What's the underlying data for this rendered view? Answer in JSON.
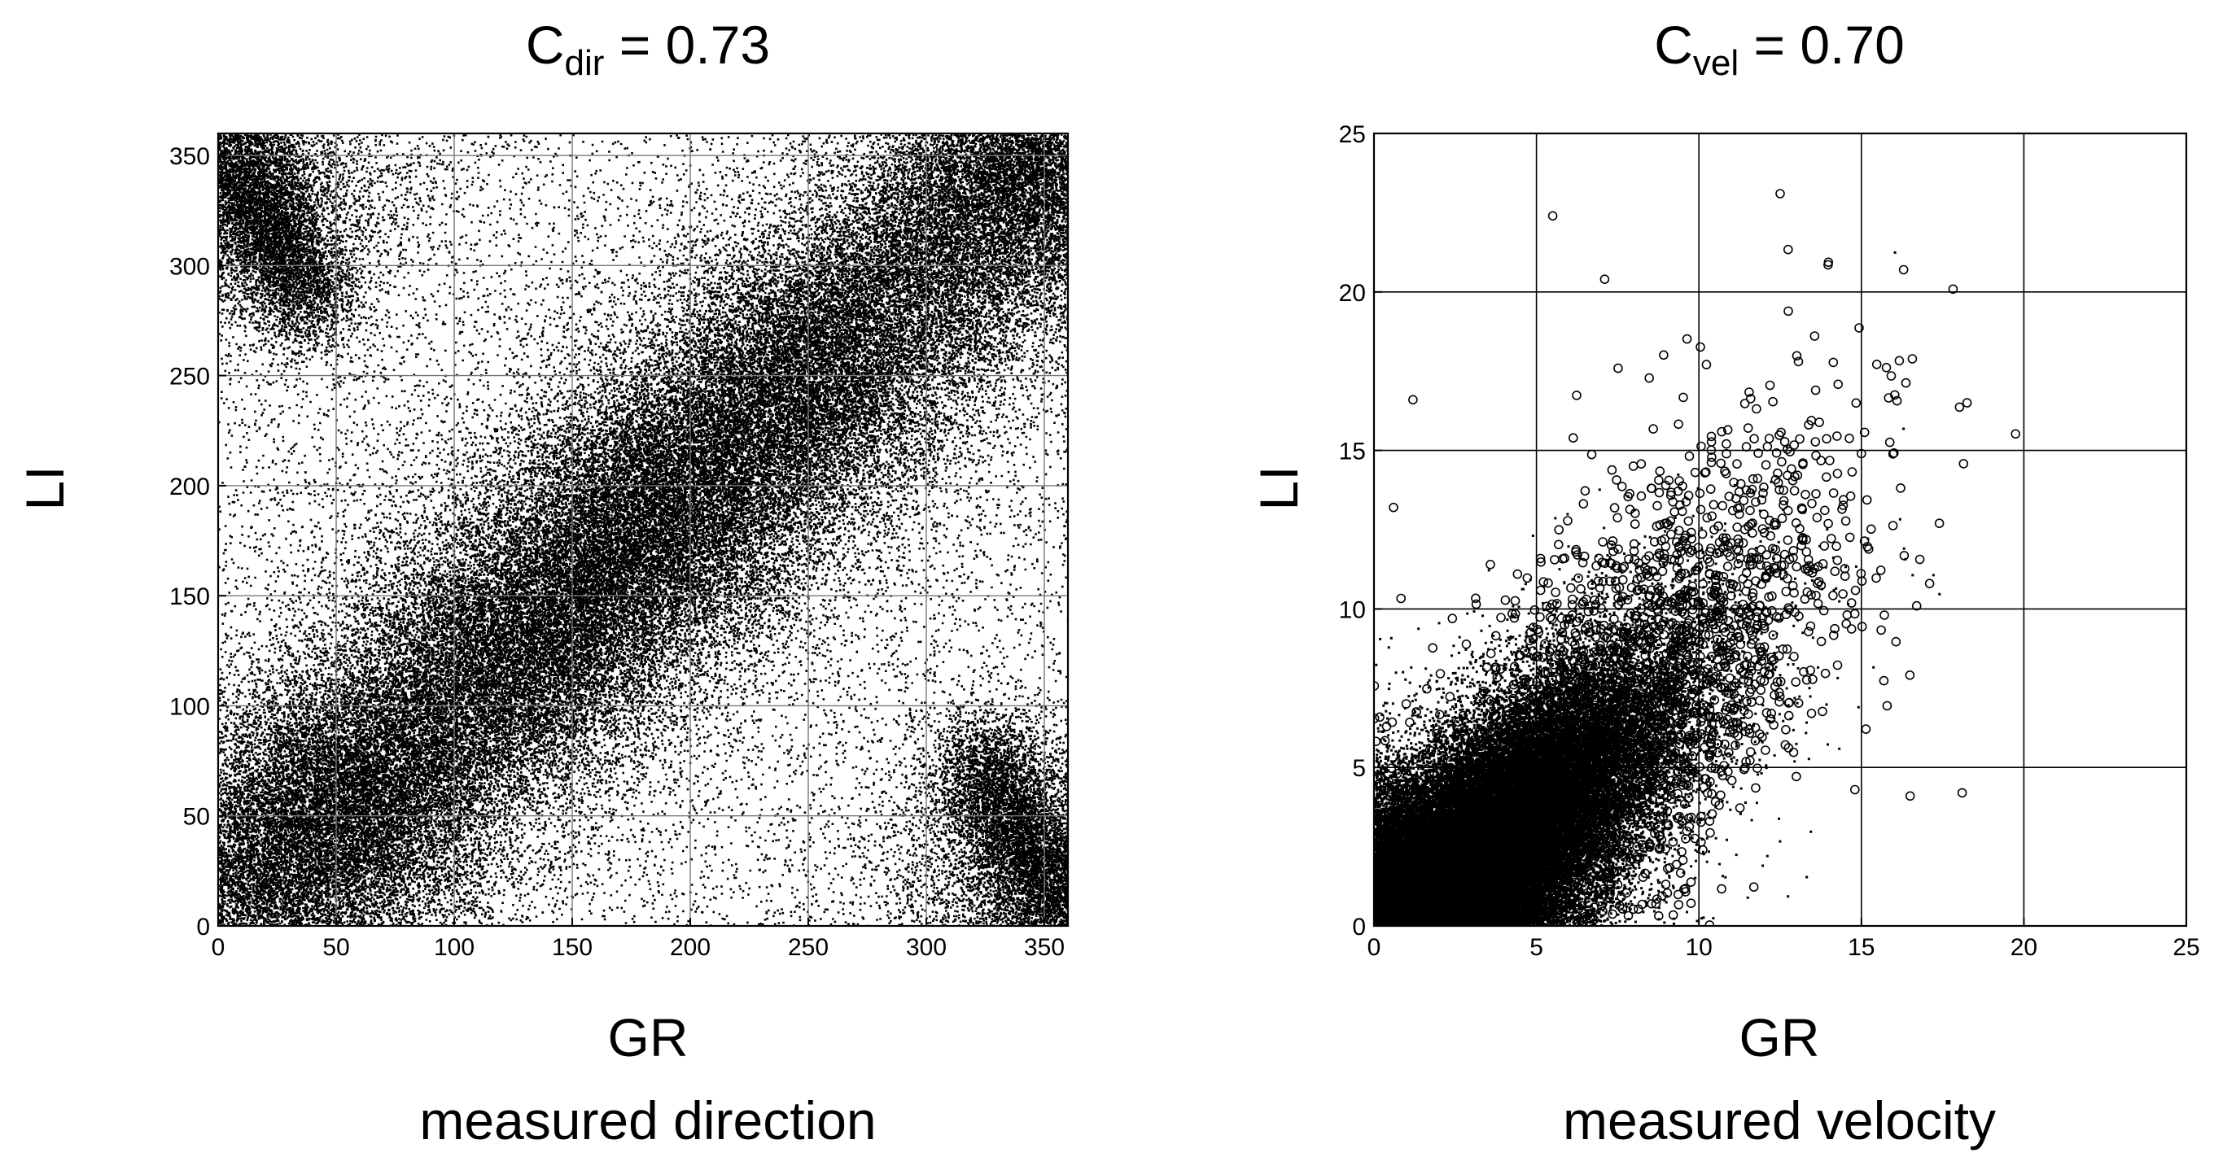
{
  "chart_data": [
    {
      "type": "scatter",
      "title": {
        "base": "C",
        "subscript": "dir",
        "rest": " = 0.73"
      },
      "xlabel": "GR",
      "ylabel": "LI",
      "caption": "measured direction",
      "xlim": [
        0,
        360
      ],
      "ylim": [
        0,
        360
      ],
      "xticks": [
        0,
        50,
        100,
        150,
        200,
        250,
        300,
        350
      ],
      "yticks": [
        0,
        50,
        100,
        150,
        200,
        250,
        300,
        350
      ],
      "grid": true,
      "marker": "dot",
      "description_of_density": [
        {
          "x": 50,
          "y": 50,
          "weight": 1.0
        },
        {
          "x": 125,
          "y": 125,
          "weight": 0.8
        },
        {
          "x": 185,
          "y": 185,
          "weight": 0.9
        },
        {
          "x": 250,
          "y": 250,
          "weight": 0.75
        },
        {
          "x": 340,
          "y": 340,
          "weight": 0.8
        },
        {
          "x": 350,
          "y": 20,
          "weight": 0.6
        },
        {
          "x": 15,
          "y": 345,
          "weight": 0.55
        }
      ]
    },
    {
      "type": "scatter",
      "title": {
        "base": "C",
        "subscript": "vel",
        "rest": " = 0.70"
      },
      "xlabel": "GR",
      "ylabel": "LI",
      "caption": "measured velocity",
      "xlim": [
        0,
        25
      ],
      "ylim": [
        0,
        25
      ],
      "xticks": [
        0,
        5,
        10,
        15,
        20,
        25
      ],
      "yticks": [
        0,
        5,
        10,
        15,
        20,
        25
      ],
      "grid": true,
      "marker": "circle",
      "outliers": [
        {
          "x": 5.5,
          "y": 22.4
        },
        {
          "x": 12.5,
          "y": 23.1
        },
        {
          "x": 7.1,
          "y": 20.4
        },
        {
          "x": 16.3,
          "y": 20.7
        },
        {
          "x": 18.1,
          "y": 4.2
        },
        {
          "x": 16.5,
          "y": 4.1
        },
        {
          "x": 17.1,
          "y": 10.8
        },
        {
          "x": 14.8,
          "y": 4.3
        },
        {
          "x": 1.2,
          "y": 16.6
        },
        {
          "x": 0.6,
          "y": 13.2
        },
        {
          "x": 17.4,
          "y": 12.7
        },
        {
          "x": 15.0,
          "y": 14.9
        }
      ]
    }
  ]
}
